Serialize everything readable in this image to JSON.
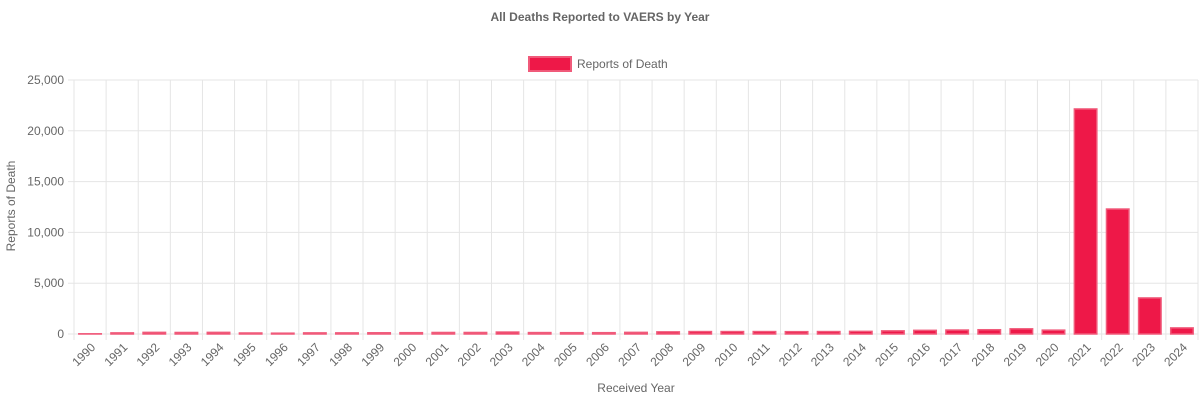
{
  "chart_data": {
    "type": "bar",
    "title": "All Deaths Reported to VAERS by Year",
    "xlabel": "Received Year",
    "ylabel": "Reports of Death",
    "ylim": [
      0,
      25000
    ],
    "yticks": [
      "0",
      "5,000",
      "10,000",
      "15,000",
      "20,000",
      "25,000"
    ],
    "ytick_values": [
      0,
      5000,
      10000,
      15000,
      20000,
      25000
    ],
    "grid": true,
    "legend_position": "top",
    "categories": [
      "1990",
      "1991",
      "1992",
      "1993",
      "1994",
      "1995",
      "1996",
      "1997",
      "1998",
      "1999",
      "2000",
      "2001",
      "2002",
      "2003",
      "2004",
      "2005",
      "2006",
      "2007",
      "2008",
      "2009",
      "2010",
      "2011",
      "2012",
      "2013",
      "2014",
      "2015",
      "2016",
      "2017",
      "2018",
      "2019",
      "2020",
      "2021",
      "2022",
      "2023",
      "2024"
    ],
    "series": [
      {
        "name": "Reports of Death",
        "color": "#EE1848",
        "border_color": "#F05A7A",
        "values": [
          20,
          110,
          160,
          150,
          160,
          100,
          80,
          110,
          110,
          120,
          130,
          150,
          150,
          190,
          140,
          130,
          130,
          160,
          210,
          240,
          240,
          240,
          230,
          240,
          260,
          310,
          360,
          390,
          420,
          510,
          380,
          22150,
          12300,
          3550,
          600
        ]
      }
    ]
  }
}
